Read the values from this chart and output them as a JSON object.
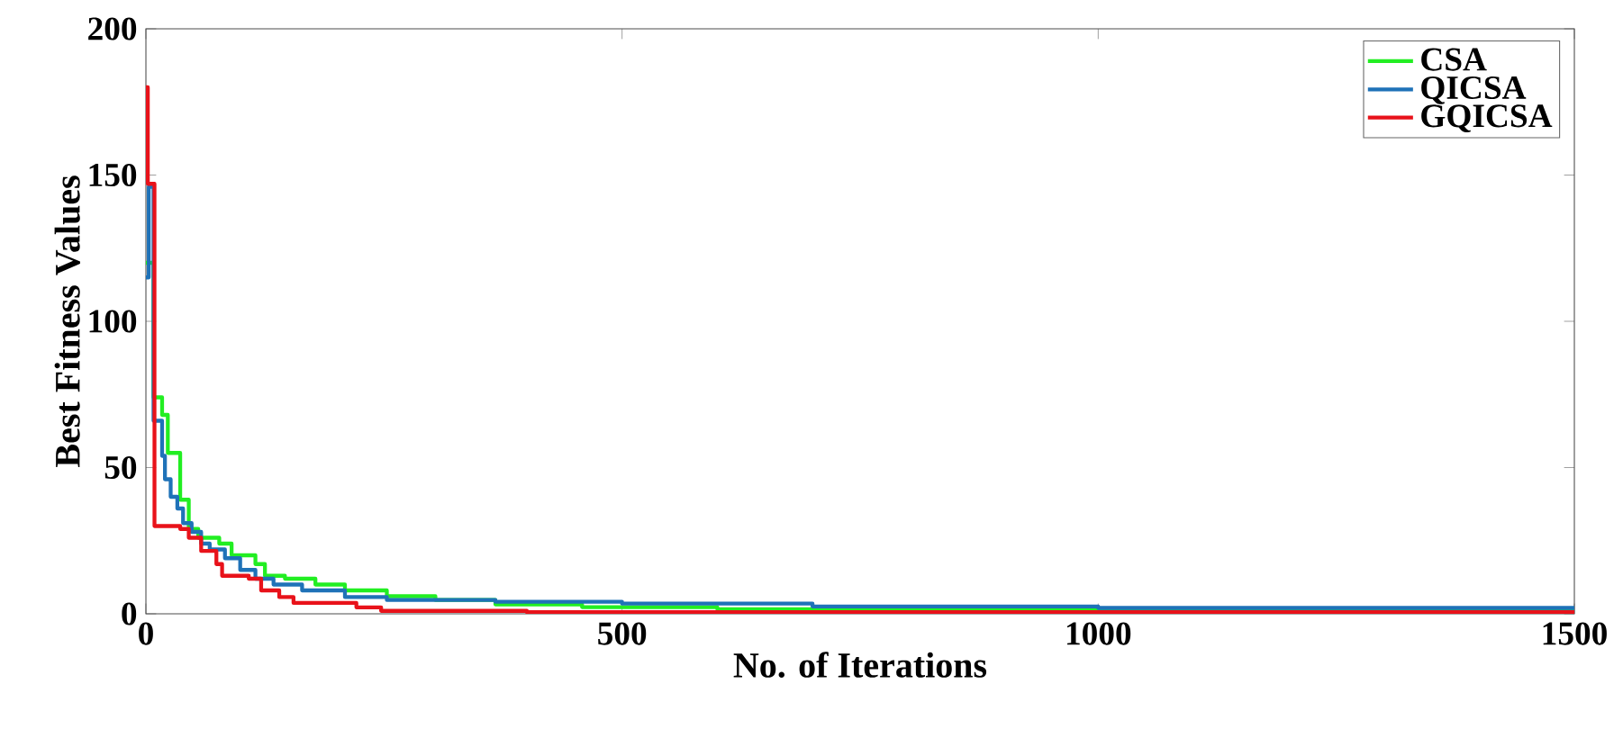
{
  "chart_data": {
    "type": "step",
    "xlabel": "No. of Iterations",
    "ylabel": "Best Fitness Values",
    "xlim": [
      0,
      1500
    ],
    "ylim": [
      0,
      200
    ],
    "xticks": [
      0,
      500,
      1000,
      1500
    ],
    "yticks": [
      0,
      50,
      100,
      150,
      200
    ],
    "legend": "top right",
    "grid": false,
    "series": [
      {
        "name": "CSA",
        "color": "#22ee22",
        "x": [
          0,
          8,
          11,
          17,
          23,
          36,
          45,
          55,
          77,
          90,
          115,
          125,
          146,
          178,
          209,
          253,
          304,
          367,
          458,
          600,
          1000,
          1500
        ],
        "values": [
          120,
          74,
          74,
          68,
          55,
          39,
          29,
          26,
          24,
          20,
          17,
          13,
          12,
          10,
          8,
          6,
          4.7,
          3.2,
          2.3,
          1.6,
          1.3,
          1.2
        ]
      },
      {
        "name": "QICSA",
        "color": "#1f72b8",
        "x": [
          0,
          3,
          8,
          17,
          20,
          26,
          33,
          39,
          48,
          58,
          67,
          83,
          99,
          115,
          134,
          164,
          209,
          253,
          367,
          500,
          700,
          1000,
          1500
        ],
        "values": [
          115,
          146,
          66,
          54,
          46,
          40,
          36,
          31,
          28,
          24,
          22,
          19,
          15,
          12,
          10,
          8,
          5.7,
          4.7,
          4.1,
          3.5,
          2.5,
          2,
          1.8
        ]
      },
      {
        "name": "GQICSA",
        "color": "#e8121a",
        "x": [
          0,
          2,
          9,
          36,
          45,
          58,
          74,
          80,
          108,
          121,
          140,
          155,
          221,
          247,
          400,
          1500
        ],
        "values": [
          180,
          147,
          30,
          29,
          26,
          21.5,
          17,
          13,
          12,
          8,
          5.7,
          3.7,
          2.2,
          1,
          0.6,
          0.5
        ]
      }
    ]
  }
}
